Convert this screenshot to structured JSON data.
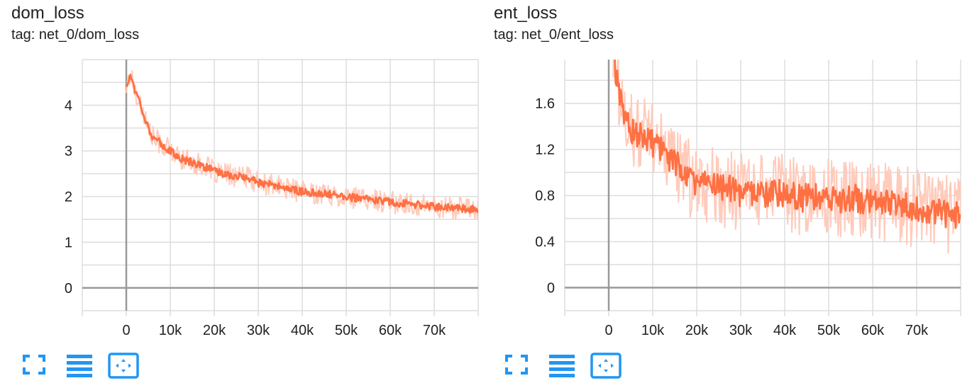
{
  "colors": {
    "series_line": "#ff7043",
    "series_raw": "#ffcbbb",
    "grid": "#dddddd",
    "axis": "#999999",
    "icon": "#2196f3"
  },
  "charts": [
    {
      "title": "dom_loss",
      "tag_text": "tag: net_0/dom_loss",
      "icons": [
        "fullscreen-icon",
        "log-scale-lines-icon",
        "fit-domain-icon"
      ]
    },
    {
      "title": "ent_loss",
      "tag_text": "tag: net_0/ent_loss",
      "icons": [
        "fullscreen-icon",
        "log-scale-lines-icon",
        "fit-domain-icon"
      ]
    }
  ],
  "chart_data": [
    {
      "type": "line",
      "title": "dom_loss",
      "xlabel": "",
      "ylabel": "",
      "xlim": [
        -10000,
        80000
      ],
      "ylim": [
        -0.5,
        5.0
      ],
      "x_ticks": [
        0,
        10000,
        20000,
        30000,
        40000,
        50000,
        60000,
        70000
      ],
      "x_tick_labels": [
        "0",
        "10k",
        "20k",
        "30k",
        "40k",
        "50k",
        "60k",
        "70k"
      ],
      "y_ticks": [
        0,
        1,
        2,
        3,
        4
      ],
      "y_tick_labels": [
        "0",
        "1",
        "2",
        "3",
        "4"
      ],
      "grid": true,
      "series": [
        {
          "x": [
            0,
            1000,
            2000,
            3000,
            4000,
            5000,
            6000,
            8000,
            10000,
            12000,
            15000,
            18000,
            20000,
            22000,
            25000,
            28000,
            30000,
            33000,
            36000,
            40000,
            43000,
            46000,
            50000,
            53000,
            56000,
            60000,
            63000,
            66000,
            70000,
            73000,
            76000,
            80000
          ],
          "y": [
            4.4,
            4.7,
            4.3,
            4.1,
            3.8,
            3.5,
            3.3,
            3.15,
            3.0,
            2.85,
            2.75,
            2.65,
            2.55,
            2.5,
            2.45,
            2.4,
            2.3,
            2.25,
            2.2,
            2.1,
            2.08,
            2.05,
            2.0,
            1.95,
            1.93,
            1.88,
            1.85,
            1.82,
            1.78,
            1.76,
            1.74,
            1.72
          ]
        }
      ]
    },
    {
      "type": "line",
      "title": "ent_loss",
      "xlabel": "",
      "ylabel": "",
      "xlim": [
        -10000,
        80000
      ],
      "ylim": [
        -0.2,
        1.98
      ],
      "x_ticks": [
        0,
        10000,
        20000,
        30000,
        40000,
        50000,
        60000,
        70000
      ],
      "x_tick_labels": [
        "0",
        "10k",
        "20k",
        "30k",
        "40k",
        "50k",
        "60k",
        "70k"
      ],
      "y_ticks": [
        0,
        0.4,
        0.8,
        1.2,
        1.6
      ],
      "y_tick_labels": [
        "0",
        "0.4",
        "0.8",
        "1.2",
        "1.6"
      ],
      "grid": true,
      "series": [
        {
          "x": [
            1000,
            2000,
            3000,
            4000,
            5000,
            6000,
            8000,
            10000,
            12000,
            14000,
            16000,
            18000,
            20000,
            22000,
            25000,
            28000,
            30000,
            33000,
            36000,
            40000,
            43000,
            46000,
            50000,
            53000,
            56000,
            60000,
            63000,
            66000,
            70000,
            73000,
            76000,
            80000
          ],
          "y": [
            1.98,
            1.8,
            1.6,
            1.45,
            1.38,
            1.35,
            1.3,
            1.25,
            1.2,
            1.1,
            1.05,
            0.95,
            0.92,
            0.9,
            0.88,
            0.85,
            0.82,
            0.8,
            0.8,
            0.82,
            0.78,
            0.78,
            0.8,
            0.75,
            0.78,
            0.72,
            0.75,
            0.72,
            0.7,
            0.68,
            0.65,
            0.62
          ]
        }
      ]
    }
  ]
}
